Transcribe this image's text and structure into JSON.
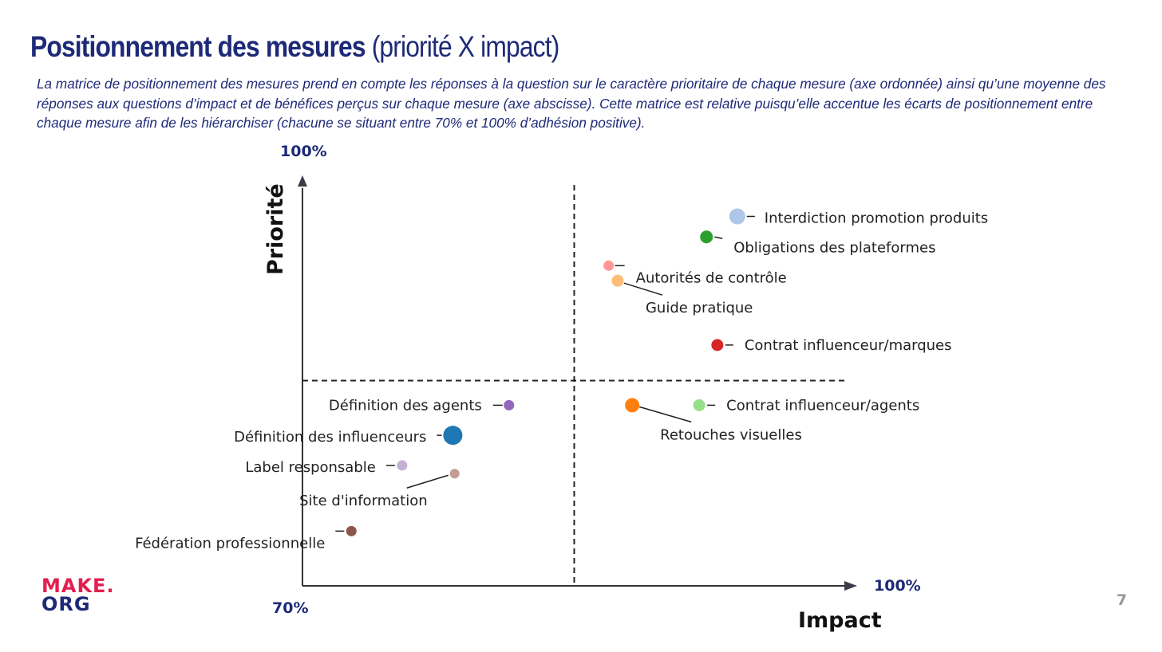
{
  "header": {
    "title_bold": "Positionnement des mesures",
    "title_rest": " (priorité X impact)",
    "subtitle": "La matrice de positionnement des mesures prend en compte les réponses à la question sur le caractère prioritaire de chaque mesure (axe ordonnée) ainsi qu’une moyenne des réponses aux questions d’impact et de bénéfices perçus sur chaque mesure (axe abscisse). Cette matrice est relative puisqu’elle accentue les écarts de positionnement entre chaque mesure afin de les hiérarchiser (chacune se situant entre 70% et 100% d’adhésion positive)."
  },
  "footer": {
    "logo_line1": "MAKE.",
    "logo_line2": "ORG",
    "page_number": "7"
  },
  "chart_data": {
    "type": "scatter",
    "title": "",
    "xlabel": "Impact",
    "ylabel": "Priorité",
    "x_min_label": "70%",
    "x_max_label": "100%",
    "y_max_label": "100%",
    "xlim": [
      70,
      100
    ],
    "ylim": [
      70,
      100
    ],
    "quadrant_divider": {
      "x": 85,
      "y": 85
    },
    "grid": false,
    "legend": "none",
    "points": [
      {
        "label": "Interdiction promotion produits",
        "x": 94.0,
        "y": 97.0,
        "color": "#aec7e8",
        "size": 10
      },
      {
        "label": "Obligations des plateformes",
        "x": 92.3,
        "y": 95.5,
        "color": "#2ca02c",
        "size": 8
      },
      {
        "label": "Autorités de contrôle",
        "x": 86.9,
        "y": 93.4,
        "color": "#ff9896",
        "size": 6.5
      },
      {
        "label": "Guide pratique",
        "x": 87.4,
        "y": 92.3,
        "color": "#ffbb78",
        "size": 7.5
      },
      {
        "label": "Contrat influenceur/marques",
        "x": 92.9,
        "y": 87.6,
        "color": "#d62728",
        "size": 7.5
      },
      {
        "label": "Contrat influenceur/agents",
        "x": 91.9,
        "y": 83.2,
        "color": "#98df8a",
        "size": 7.5
      },
      {
        "label": "Retouches visuelles",
        "x": 88.2,
        "y": 83.2,
        "color": "#ff7f0e",
        "size": 9
      },
      {
        "label": "Définition des agents",
        "x": 81.4,
        "y": 83.2,
        "color": "#9467bd",
        "size": 6.5
      },
      {
        "label": "Définition des influenceurs",
        "x": 78.3,
        "y": 81.0,
        "color": "#1f77b4",
        "size": 12
      },
      {
        "label": "Label responsable",
        "x": 75.5,
        "y": 78.8,
        "color": "#c5b0d5",
        "size": 6.5
      },
      {
        "label": "Site d'information",
        "x": 78.4,
        "y": 78.2,
        "color": "#c49c94",
        "size": 6
      },
      {
        "label": "Fédération professionnelle",
        "x": 72.7,
        "y": 74.0,
        "color": "#8c564b",
        "size": 6.5
      }
    ]
  }
}
